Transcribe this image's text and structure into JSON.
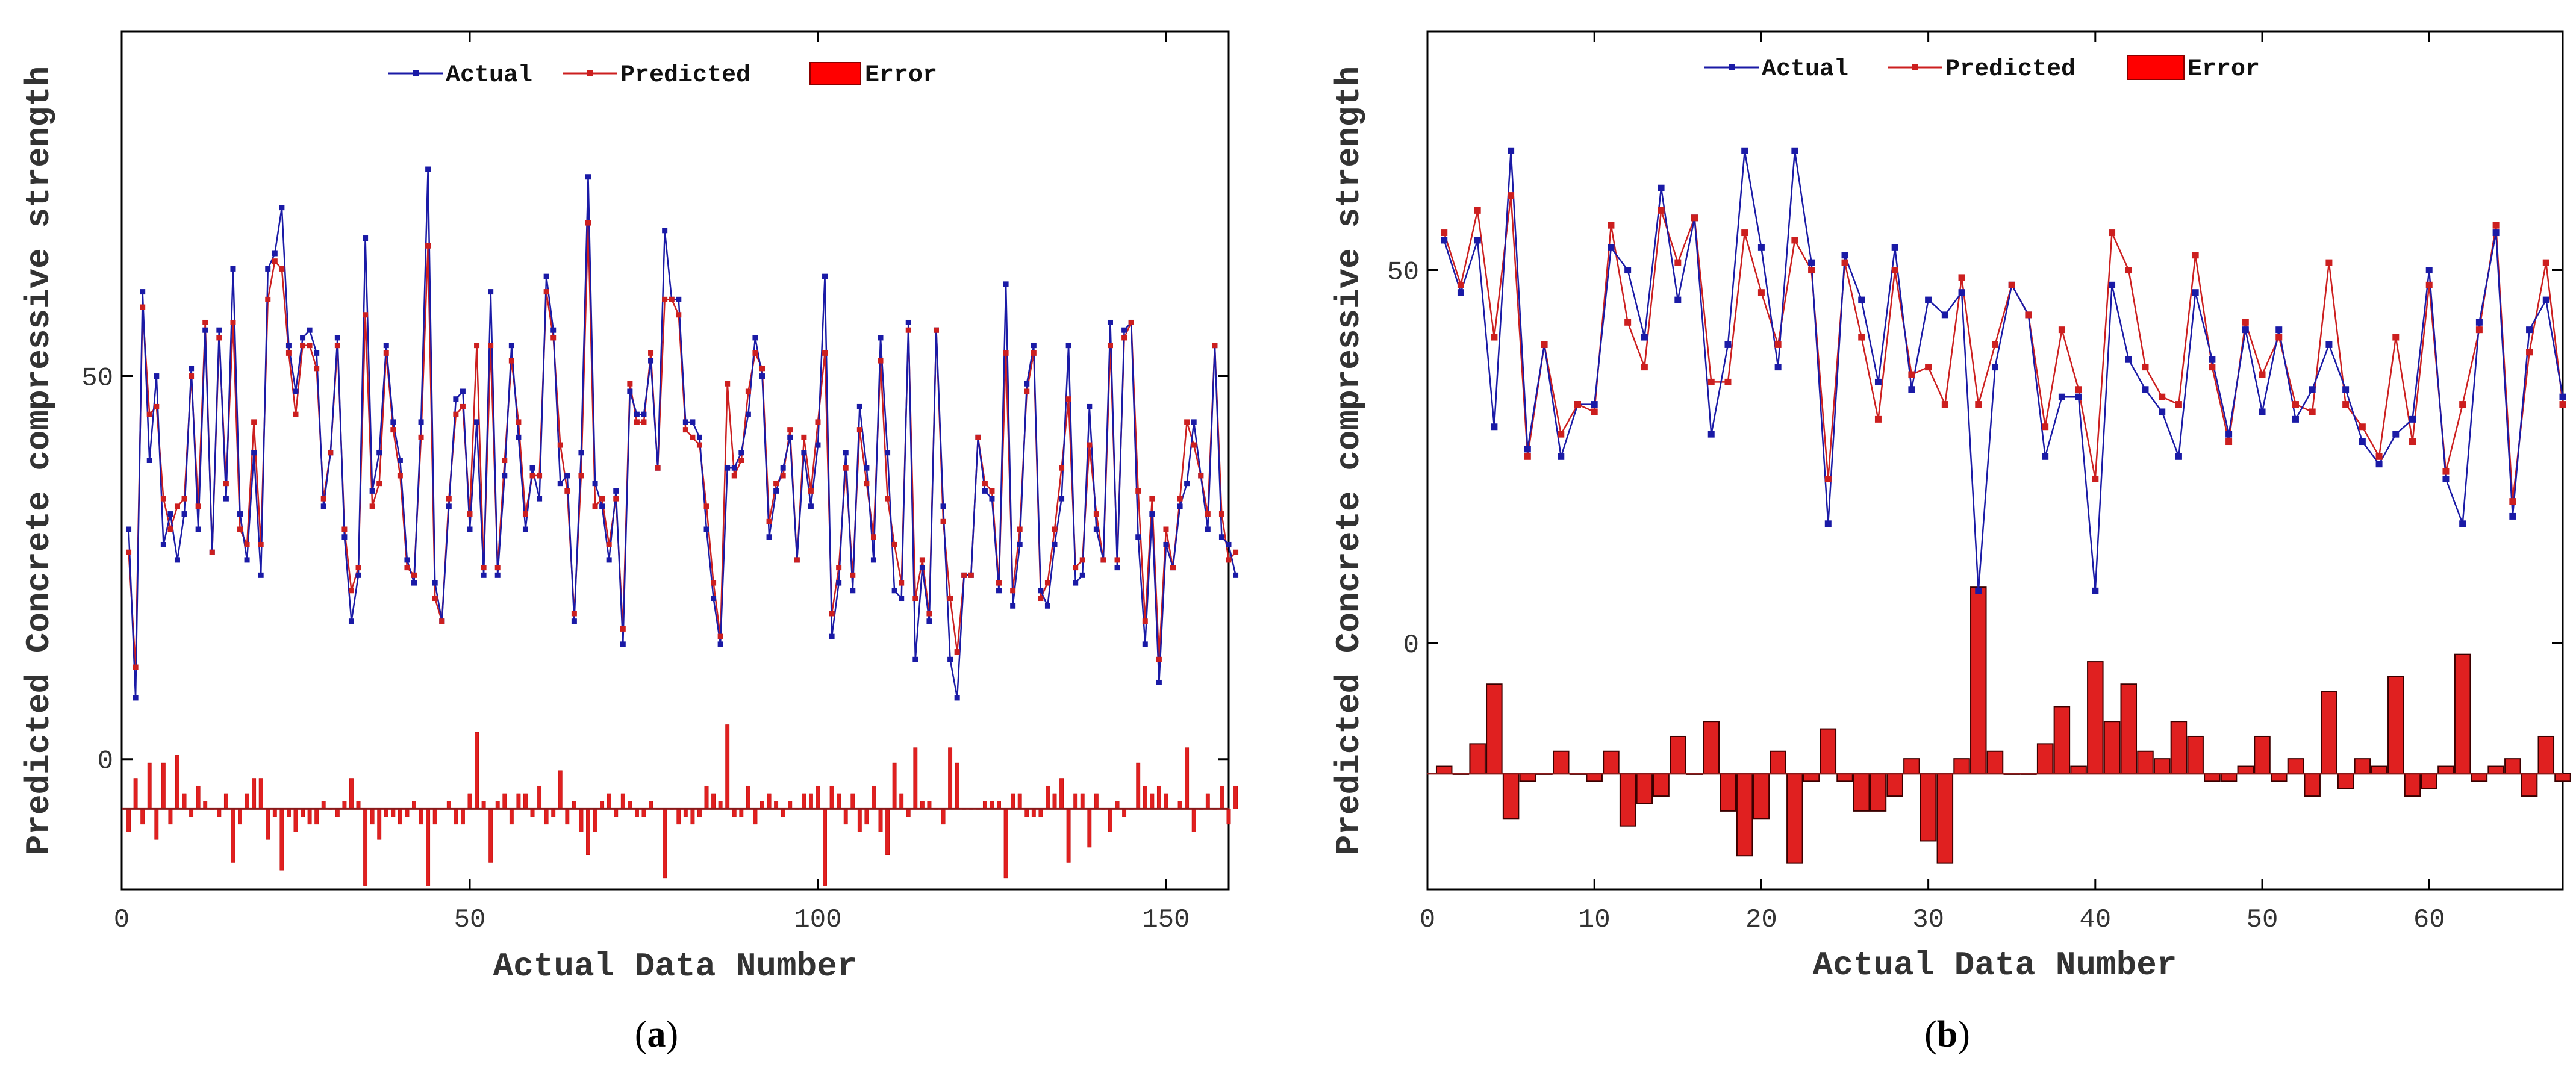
{
  "panels": [
    {
      "caption_open": "(",
      "caption_letter": "a",
      "caption_close": ")",
      "chart_data": {
        "type": "line",
        "title": "",
        "xlabel": "Actual Data Number",
        "ylabel": "Predicted Concrete compressive strength",
        "xlim": [
          0,
          159
        ],
        "ylim": [
          -17,
          95
        ],
        "xticks": [
          0,
          50,
          100,
          150
        ],
        "yticks": [
          0,
          50
        ],
        "error_baseline": -6.5,
        "legend": {
          "position": "top-center",
          "entries": [
            "Actual",
            "Predicted",
            "Error"
          ]
        },
        "series": [
          {
            "name": "Actual",
            "color": "#1a1aa6",
            "values": [
              30,
              8,
              61,
              39,
              50,
              28,
              32,
              26,
              32,
              51,
              30,
              56,
              27,
              56,
              34,
              64,
              32,
              26,
              40,
              24,
              64,
              66,
              72,
              54,
              48,
              55,
              56,
              53,
              33,
              40,
              55,
              29,
              18,
              24,
              68,
              35,
              40,
              54,
              44,
              39,
              26,
              23,
              44,
              77,
              23,
              18,
              33,
              47,
              48,
              30,
              44,
              24,
              61,
              24,
              37,
              54,
              42,
              30,
              38,
              34,
              63,
              56,
              36,
              37,
              18,
              40,
              76,
              36,
              33,
              26,
              35,
              15,
              48,
              45,
              45,
              52,
              38,
              69,
              60,
              60,
              44,
              44,
              42,
              30,
              21,
              15,
              38,
              38,
              40,
              45,
              55,
              50,
              29,
              35,
              38,
              42,
              26,
              40,
              33,
              41,
              63,
              16,
              23,
              40,
              22,
              46,
              38,
              26,
              55,
              40,
              22,
              21,
              57,
              13,
              25,
              18,
              56,
              33,
              13,
              8,
              24,
              24,
              42,
              35,
              34,
              22,
              62,
              20,
              28,
              49,
              54,
              22,
              20,
              28,
              34,
              54,
              23,
              24,
              46,
              30,
              26,
              57,
              25,
              56,
              57,
              29,
              15,
              32,
              10,
              28,
              25,
              33,
              36,
              44,
              37,
              30,
              54,
              29,
              28,
              24
            ]
          },
          {
            "name": "Predicted",
            "color": "#cc1f1f",
            "values": [
              27,
              12,
              59,
              45,
              46,
              34,
              30,
              33,
              34,
              50,
              33,
              57,
              27,
              55,
              36,
              57,
              30,
              28,
              44,
              28,
              60,
              65,
              64,
              53,
              45,
              54,
              54,
              51,
              34,
              40,
              54,
              30,
              22,
              25,
              58,
              33,
              36,
              53,
              43,
              37,
              25,
              24,
              42,
              67,
              21,
              18,
              34,
              45,
              46,
              32,
              54,
              25,
              54,
              25,
              39,
              52,
              44,
              32,
              37,
              37,
              61,
              55,
              41,
              35,
              19,
              37,
              70,
              33,
              34,
              28,
              34,
              17,
              49,
              44,
              44,
              53,
              38,
              60,
              60,
              58,
              43,
              42,
              41,
              33,
              23,
              16,
              49,
              37,
              39,
              48,
              53,
              51,
              31,
              36,
              37,
              43,
              26,
              42,
              35,
              44,
              53,
              19,
              25,
              38,
              24,
              43,
              36,
              29,
              52,
              34,
              28,
              23,
              56,
              21,
              26,
              19,
              56,
              31,
              21,
              14,
              24,
              24,
              42,
              36,
              35,
              23,
              53,
              22,
              30,
              48,
              53,
              21,
              23,
              30,
              38,
              47,
              25,
              26,
              41,
              32,
              26,
              54,
              26,
              55,
              57,
              35,
              18,
              34,
              13,
              30,
              25,
              34,
              44,
              41,
              37,
              32,
              54,
              32,
              26,
              27
            ]
          }
        ],
        "error_series": {
          "name": "Error",
          "color": "#e02020",
          "values": [
            -3,
            4,
            -2,
            6,
            -4,
            6,
            -2,
            7,
            2,
            -1,
            3,
            1,
            0,
            -1,
            2,
            -7,
            -2,
            2,
            4,
            4,
            -4,
            -1,
            -8,
            -1,
            -3,
            -1,
            -2,
            -2,
            1,
            0,
            -1,
            1,
            4,
            1,
            -10,
            -2,
            -4,
            -1,
            -1,
            -2,
            -1,
            1,
            -2,
            -10,
            -2,
            0,
            1,
            -2,
            -2,
            2,
            10,
            1,
            -7,
            1,
            2,
            -2,
            2,
            2,
            -1,
            3,
            -2,
            -1,
            5,
            -2,
            1,
            -3,
            -6,
            -3,
            1,
            2,
            -1,
            2,
            1,
            -1,
            -1,
            1,
            0,
            -9,
            0,
            -2,
            -1,
            -2,
            -1,
            3,
            2,
            1,
            11,
            -1,
            -1,
            3,
            -2,
            1,
            2,
            1,
            -1,
            1,
            0,
            2,
            2,
            3,
            -10,
            3,
            2,
            -2,
            2,
            -3,
            -2,
            3,
            -3,
            -6,
            6,
            2,
            -1,
            8,
            1,
            1,
            0,
            -2,
            8,
            6,
            0,
            0,
            0,
            1,
            1,
            1,
            -9,
            2,
            2,
            -1,
            -1,
            -1,
            3,
            2,
            4,
            -7,
            2,
            2,
            -5,
            2,
            0,
            -3,
            1,
            -1,
            0,
            6,
            3,
            2,
            3,
            2,
            0,
            1,
            8,
            -3,
            0,
            2,
            0,
            3,
            -2,
            3
          ]
        }
      }
    },
    {
      "caption_open": "(",
      "caption_letter": "b",
      "caption_close": ")",
      "chart_data": {
        "type": "line",
        "title": "",
        "xlabel": "Actual Data Number",
        "ylabel": "Predicted Concrete compressive strength",
        "xlim": [
          0,
          68
        ],
        "ylim": [
          -33,
          82
        ],
        "xticks": [
          0,
          10,
          20,
          30,
          40,
          50,
          60
        ],
        "yticks": [
          0,
          50
        ],
        "error_baseline": -17.5,
        "legend": {
          "position": "top-center",
          "entries": [
            "Actual",
            "Predicted",
            "Error"
          ]
        },
        "series": [
          {
            "name": "Actual",
            "color": "#1a1aa6",
            "values": [
              54,
              47,
              54,
              29,
              66,
              26,
              40,
              25,
              32,
              32,
              53,
              50,
              41,
              61,
              46,
              57,
              28,
              40,
              66,
              53,
              37,
              66,
              51,
              16,
              52,
              46,
              35,
              53,
              34,
              46,
              44,
              47,
              7,
              37,
              48,
              44,
              25,
              33,
              33,
              7,
              48,
              38,
              34,
              31,
              25,
              47,
              38,
              28,
              42,
              31,
              42,
              30,
              34,
              40,
              34,
              27,
              24,
              28,
              30,
              50,
              22,
              16,
              43,
              55,
              17,
              42,
              46,
              33
            ]
          },
          {
            "name": "Predicted",
            "color": "#cc1f1f",
            "values": [
              55,
              48,
              58,
              41,
              60,
              25,
              40,
              28,
              32,
              31,
              56,
              43,
              37,
              58,
              51,
              57,
              35,
              35,
              55,
              47,
              40,
              54,
              50,
              22,
              51,
              41,
              30,
              50,
              36,
              37,
              32,
              49,
              32,
              40,
              48,
              44,
              29,
              42,
              34,
              22,
              55,
              50,
              37,
              33,
              32,
              52,
              37,
              27,
              43,
              36,
              41,
              32,
              31,
              51,
              32,
              29,
              25,
              41,
              27,
              48,
              23,
              32,
              42,
              56,
              19,
              39,
              51,
              32
            ]
          }
        ],
        "error_series": {
          "name": "Error",
          "color": "#e02020",
          "values": [
            1,
            0,
            4,
            12,
            -6,
            -1,
            0,
            3,
            0,
            -1,
            3,
            -7,
            -4,
            -3,
            5,
            0,
            7,
            -5,
            -11,
            -6,
            3,
            -12,
            -1,
            6,
            -1,
            -5,
            -5,
            -3,
            2,
            -9,
            -12,
            2,
            25,
            3,
            0,
            0,
            4,
            9,
            1,
            15,
            7,
            12,
            3,
            2,
            7,
            5,
            -1,
            -1,
            1,
            5,
            -1,
            2,
            -3,
            11,
            -2,
            2,
            1,
            13,
            -3,
            -2,
            1,
            16,
            -1,
            1,
            2,
            -3,
            5,
            -1
          ]
        }
      }
    }
  ]
}
